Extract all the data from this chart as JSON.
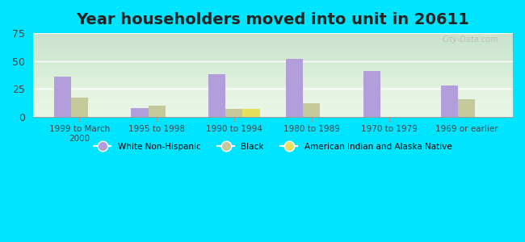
{
  "title": "Year householders moved into unit in 20611",
  "categories": [
    "1999 to March\n2000",
    "1995 to 1998",
    "1990 to 1994",
    "1980 to 1989",
    "1970 to 1979",
    "1969 or earlier"
  ],
  "white_non_hispanic": [
    36,
    8,
    38,
    52,
    41,
    28
  ],
  "black": [
    17,
    10,
    7,
    12,
    0,
    16
  ],
  "american_indian": [
    0,
    0,
    7,
    0,
    0,
    0
  ],
  "bar_width": 0.22,
  "white_color": "#b39ddb",
  "black_color": "#c5c89a",
  "american_indian_color": "#e8e05a",
  "ylim": [
    0,
    75
  ],
  "yticks": [
    0,
    25,
    50,
    75
  ],
  "bg_outer": "#00e5ff",
  "bg_plot": "#e8f5e6",
  "title_fontsize": 14,
  "watermark": "City-Data.com"
}
